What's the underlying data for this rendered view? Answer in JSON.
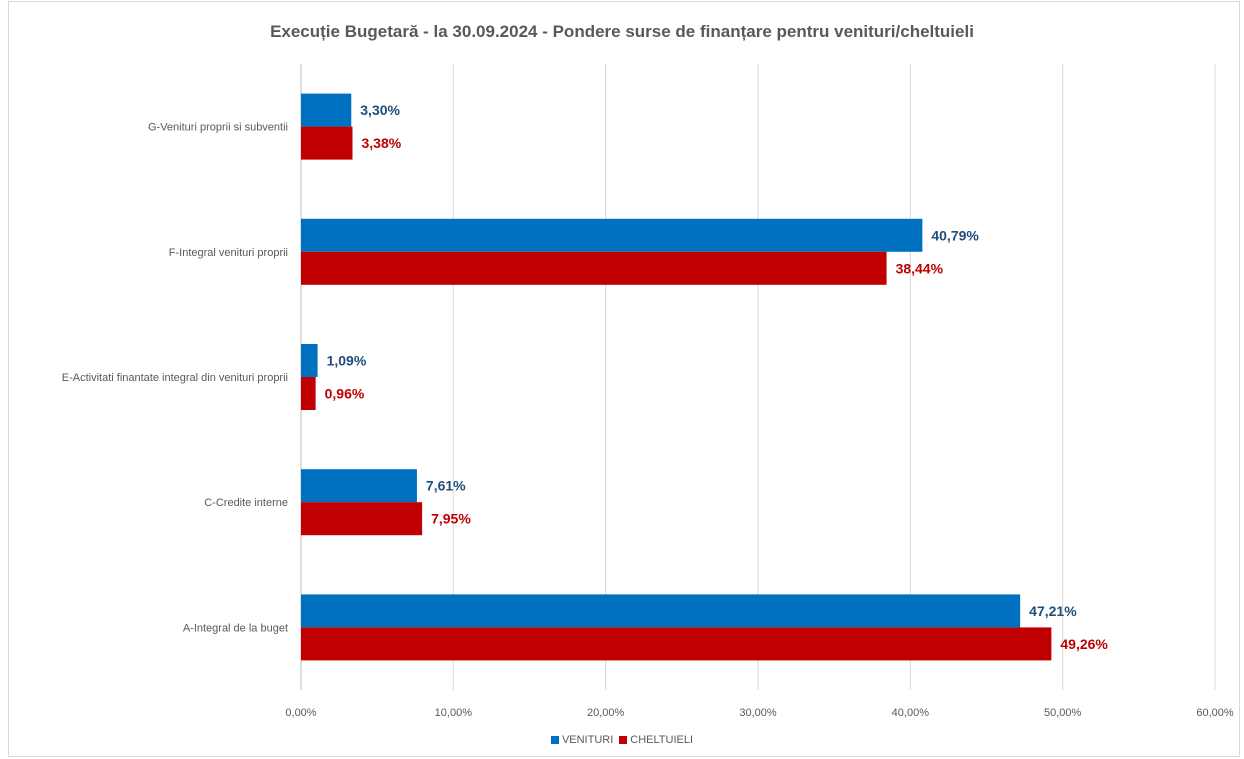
{
  "chart_data": {
    "type": "bar",
    "orientation": "horizontal",
    "title": "Execuție Bugetară - la 30.09.2024 - Pondere surse de finanțare pentru venituri/cheltuieli",
    "categories": [
      "G-Venituri proprii si subventii",
      "F-Integral venituri proprii",
      "E-Activitati finantate integral din venituri proprii",
      "C-Credite interne",
      "A-Integral de la buget"
    ],
    "series": [
      {
        "name": "VENITURI",
        "color": "#0070c0",
        "label_color": "#1f4e79",
        "values": [
          3.3,
          40.79,
          1.09,
          7.61,
          47.21
        ],
        "labels": [
          "3,30%",
          "40,79%",
          "1,09%",
          "7,61%",
          "47,21%"
        ]
      },
      {
        "name": "CHELTUIELI",
        "color": "#c00000",
        "label_color": "#c00000",
        "values": [
          3.38,
          38.44,
          0.96,
          7.95,
          49.26
        ],
        "labels": [
          "3,38%",
          "38,44%",
          "0,96%",
          "7,95%",
          "49,26%"
        ]
      }
    ],
    "xlim": [
      0,
      60
    ],
    "xticks": [
      "0,00%",
      "10,00%",
      "20,00%",
      "30,00%",
      "40,00%",
      "50,00%",
      "60,00%"
    ],
    "grid": true,
    "legend_position": "bottom"
  }
}
